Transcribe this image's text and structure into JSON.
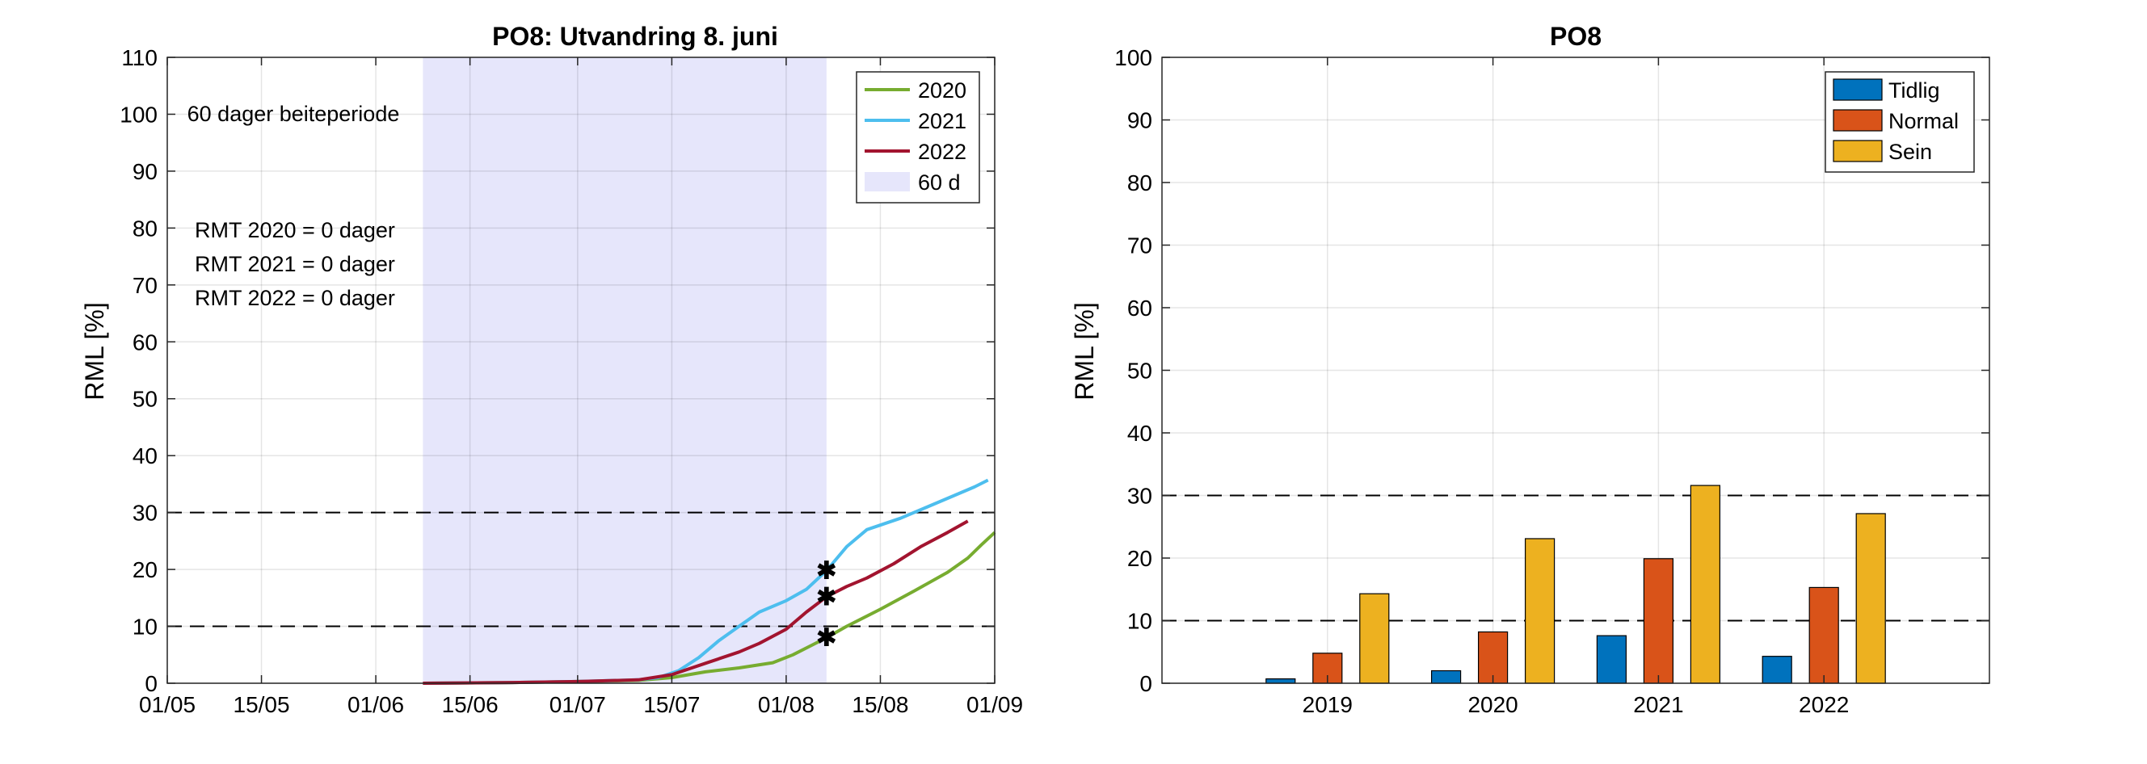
{
  "chart_data": [
    {
      "type": "line",
      "title": "PO8: Utvandring 8. juni",
      "xlabel": "",
      "ylabel": "RML [%]",
      "xlim": [
        "2022-05-01",
        "2022-09-01"
      ],
      "ylim": [
        0,
        110
      ],
      "yticks": [
        0,
        10,
        20,
        30,
        40,
        50,
        60,
        70,
        80,
        90,
        100,
        110
      ],
      "xticks": [
        {
          "date": "2022-05-01",
          "label": "01/05"
        },
        {
          "date": "2022-05-15",
          "label": "15/05"
        },
        {
          "date": "2022-06-01",
          "label": "01/06"
        },
        {
          "date": "2022-06-15",
          "label": "15/06"
        },
        {
          "date": "2022-07-01",
          "label": "01/07"
        },
        {
          "date": "2022-07-15",
          "label": "15/07"
        },
        {
          "date": "2022-08-01",
          "label": "01/08"
        },
        {
          "date": "2022-08-15",
          "label": "15/08"
        },
        {
          "date": "2022-09-01",
          "label": "01/09"
        }
      ],
      "grid": true,
      "legend_position": "top-right",
      "shaded_period": {
        "start": "2022-06-08",
        "end": "2022-08-07",
        "label": "60 d",
        "color": "#e6e6fb"
      },
      "shaded_label": "60 dager beiteperiode",
      "hlines": [
        10,
        30
      ],
      "annotations": [
        "RMT 2020 = 0 dager",
        "RMT 2021 = 0 dager",
        "RMT 2022 = 0 dager"
      ],
      "series": [
        {
          "name": "2020",
          "color": "#77ac30",
          "points": [
            [
              "2022-06-08",
              0
            ],
            [
              "2022-06-20",
              0.1
            ],
            [
              "2022-07-01",
              0.3
            ],
            [
              "2022-07-10",
              0.5
            ],
            [
              "2022-07-15",
              1.0
            ],
            [
              "2022-07-20",
              2.0
            ],
            [
              "2022-07-25",
              2.7
            ],
            [
              "2022-07-30",
              3.6
            ],
            [
              "2022-08-02",
              5.0
            ],
            [
              "2022-08-05",
              6.8
            ],
            [
              "2022-08-07",
              8.0
            ],
            [
              "2022-08-10",
              10.0
            ],
            [
              "2022-08-15",
              13.0
            ],
            [
              "2022-08-20",
              16.2
            ],
            [
              "2022-08-25",
              19.5
            ],
            [
              "2022-08-28",
              22.0
            ],
            [
              "2022-08-30",
              24.3
            ],
            [
              "2022-09-01",
              26.5
            ]
          ]
        },
        {
          "name": "2021",
          "color": "#4dbeee",
          "points": [
            [
              "2022-06-08",
              0
            ],
            [
              "2022-06-20",
              0.1
            ],
            [
              "2022-07-01",
              0.3
            ],
            [
              "2022-07-10",
              0.6
            ],
            [
              "2022-07-13",
              1.0
            ],
            [
              "2022-07-16",
              2.2
            ],
            [
              "2022-07-19",
              4.5
            ],
            [
              "2022-07-22",
              7.5
            ],
            [
              "2022-07-25",
              10.0
            ],
            [
              "2022-07-28",
              12.5
            ],
            [
              "2022-08-01",
              14.5
            ],
            [
              "2022-08-04",
              16.5
            ],
            [
              "2022-08-07",
              19.8
            ],
            [
              "2022-08-10",
              24.0
            ],
            [
              "2022-08-13",
              27.0
            ],
            [
              "2022-08-18",
              29.0
            ],
            [
              "2022-08-22",
              31.0
            ],
            [
              "2022-08-26",
              33.0
            ],
            [
              "2022-08-29",
              34.5
            ],
            [
              "2022-08-31",
              35.7
            ]
          ]
        },
        {
          "name": "2022",
          "color": "#a2142f",
          "points": [
            [
              "2022-06-08",
              0
            ],
            [
              "2022-06-20",
              0.1
            ],
            [
              "2022-07-01",
              0.3
            ],
            [
              "2022-07-10",
              0.6
            ],
            [
              "2022-07-15",
              1.5
            ],
            [
              "2022-07-20",
              3.5
            ],
            [
              "2022-07-25",
              5.5
            ],
            [
              "2022-07-28",
              7.0
            ],
            [
              "2022-08-01",
              9.5
            ],
            [
              "2022-08-04",
              12.5
            ],
            [
              "2022-08-07",
              15.2
            ],
            [
              "2022-08-10",
              17.0
            ],
            [
              "2022-08-13",
              18.5
            ],
            [
              "2022-08-17",
              21.0
            ],
            [
              "2022-08-21",
              24.0
            ],
            [
              "2022-08-25",
              26.5
            ],
            [
              "2022-08-28",
              28.5
            ]
          ]
        }
      ],
      "markers": [
        {
          "date": "2022-08-07",
          "value": 8.0
        },
        {
          "date": "2022-08-07",
          "value": 15.2
        },
        {
          "date": "2022-08-07",
          "value": 19.8
        }
      ]
    },
    {
      "type": "bar",
      "title": "PO8",
      "xlabel": "",
      "ylabel": "RML [%]",
      "ylim": [
        0,
        100
      ],
      "yticks": [
        0,
        10,
        20,
        30,
        40,
        50,
        60,
        70,
        80,
        90,
        100
      ],
      "grid": true,
      "legend_position": "top-right",
      "hlines": [
        10,
        30
      ],
      "categories": [
        "2019",
        "2020",
        "2021",
        "2022"
      ],
      "series": [
        {
          "name": "Tidlig",
          "color": "#0072bd",
          "values": [
            0.7,
            2.0,
            7.6,
            4.3
          ]
        },
        {
          "name": "Normal",
          "color": "#d95319",
          "values": [
            4.8,
            8.2,
            19.9,
            15.3
          ]
        },
        {
          "name": "Sein",
          "color": "#edb120",
          "values": [
            14.3,
            23.1,
            31.6,
            27.1
          ]
        }
      ]
    }
  ]
}
